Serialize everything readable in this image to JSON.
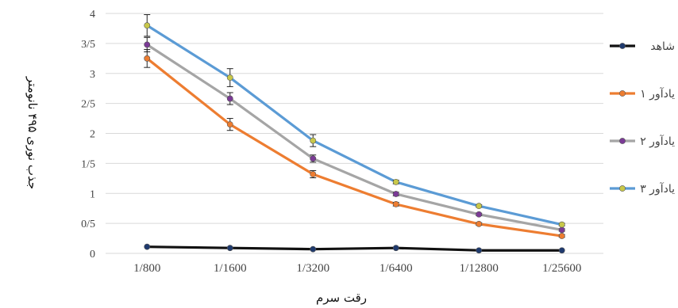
{
  "chart_data": {
    "type": "line",
    "xlabel": "رقت سرم",
    "ylabel": "جذب نوری ۴۹۵ نانومتر",
    "categories": [
      "1/800",
      "1/1600",
      "1/3200",
      "1/6400",
      "1/12800",
      "1/25600"
    ],
    "yticks": [
      "0",
      "0/5",
      "1",
      "1/5",
      "2",
      "2/5",
      "3",
      "3/5",
      "4"
    ],
    "ylim": [
      0,
      4
    ],
    "grid": "horizontal",
    "legend_position": "right",
    "series": [
      {
        "name": "شاهد",
        "color": "#111111",
        "marker_fill": "#1f3a6e",
        "values": [
          0.11,
          0.09,
          0.07,
          0.09,
          0.05,
          0.05
        ],
        "errors": [
          0,
          0,
          0,
          0,
          0,
          0
        ]
      },
      {
        "name": "یادآور ۱",
        "color": "#ed7d31",
        "marker_fill": "#ed7d31",
        "values": [
          3.25,
          2.15,
          1.32,
          0.82,
          0.49,
          0.29
        ],
        "errors": [
          0.15,
          0.1,
          0.06,
          0.03,
          0.02,
          0.02
        ]
      },
      {
        "name": "یادآور ۲",
        "color": "#a5a5a5",
        "marker_fill": "#7b3a96",
        "values": [
          3.48,
          2.58,
          1.58,
          0.99,
          0.65,
          0.39
        ],
        "errors": [
          0.12,
          0.1,
          0.06,
          0.03,
          0.02,
          0.02
        ]
      },
      {
        "name": "یادآور ۳",
        "color": "#5b9bd5",
        "marker_fill": "#c8c84a",
        "values": [
          3.8,
          2.93,
          1.88,
          1.19,
          0.79,
          0.48
        ],
        "errors": [
          0.18,
          0.15,
          0.1,
          0.03,
          0.02,
          0.02
        ]
      }
    ]
  }
}
